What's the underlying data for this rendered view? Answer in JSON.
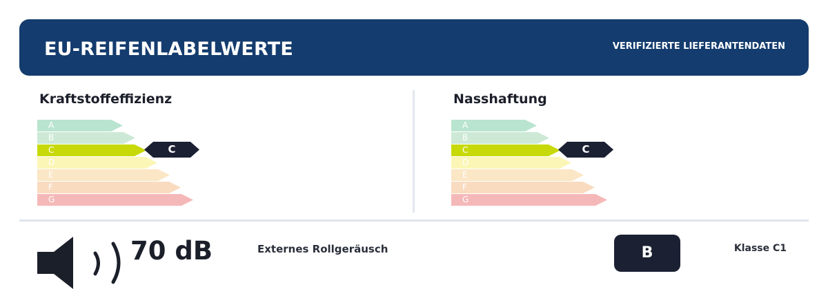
{
  "header": {
    "title": "EU-REIFENLABELWERTE",
    "badge": "VERIFIZIERTE LIEFERANTENDATEN",
    "background_color": "#143c6e"
  },
  "grades": [
    "A",
    "B",
    "C",
    "D",
    "E",
    "F",
    "G"
  ],
  "grade_colors": [
    "#b9e4cf",
    "#cde9d6",
    "#c8d90a",
    "#fbf6b6",
    "#fbe6c5",
    "#f9dbc0",
    "#f5b8b8"
  ],
  "fuel_efficiency": {
    "label": "Kraftstoffeffizienz",
    "rating": "C",
    "marker_color": "#1b2033"
  },
  "wet_grip": {
    "label": "Nasshaftung",
    "rating": "C",
    "marker_color": "#1b2033"
  },
  "noise": {
    "value": "70 dB",
    "label": "Externes Rollgeräusch",
    "class": "B",
    "icon": "speaker-sound-icon"
  },
  "tyre_class": "Klasse C1"
}
